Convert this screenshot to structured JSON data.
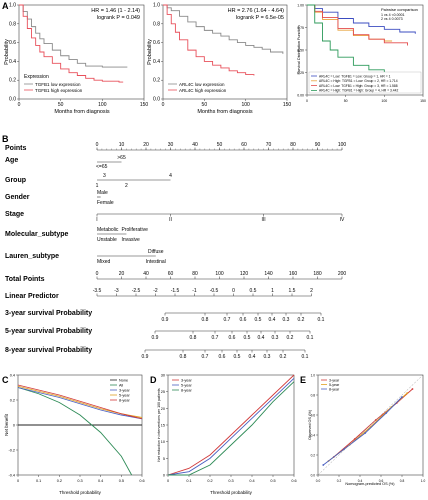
{
  "panels": {
    "A": "A",
    "B": "B",
    "C": "C",
    "D": "D",
    "E": "E"
  },
  "km1": {
    "stat_line1": "HR = 1.46 (1 - 2.14)",
    "stat_line2": "logrank P = 0.049",
    "ylabel": "Probability",
    "xlabel": "Months from diagnosis",
    "legend_title": "Expression",
    "legend": [
      "TGFB1 low expression",
      "TGFB1 high expression"
    ]
  },
  "km2": {
    "stat_line1": "HR = 2.76 (1.64 - 4.64)",
    "stat_line2": "logrank P = 6.5e-05",
    "ylabel": "Probability",
    "xlabel": "Months from diagnosis",
    "legend": [
      "ARL4C low expression",
      "ARL4C high expression"
    ]
  },
  "km3": {
    "ylabel": "Survival Distribution Function",
    "title": "Pairwise comparison",
    "pairs": [
      "1 vs 4 <0.0001",
      "2 vs 4 0.0073"
    ],
    "legend": [
      "ARL4C = Low: TGFB1 = Low: Group = 1, HR = 1",
      "ARL4C = High: TGFB1 = Low: Group = 2, HR = 1.714",
      "ARL4C = Low: TGFB1 = High: Group = 3, HR = 1.588",
      "ARL4C = High: TGFB1 = High: Group = 4, HR = 3.442"
    ]
  },
  "colors": {
    "km_low": "#8a8a8a",
    "km_high": "#e8505b",
    "km3_g1": "#3b4cc0",
    "km3_g2": "#e8a33d",
    "km3_g3": "#e34b4b",
    "km3_g4": "#2c9a5a",
    "dca_none": "#222222",
    "dca_all": "#2e8b57",
    "dca_3yr": "#4a5fc1",
    "dca_5yr": "#e0a020",
    "dca_8yr": "#d23a3a"
  },
  "nomogram": {
    "rows": [
      {
        "label": "Points"
      },
      {
        "label": "Age",
        "values": [
          ">65",
          "<=65"
        ]
      },
      {
        "label": "Group",
        "values": [
          "3",
          "4",
          "1",
          "2"
        ]
      },
      {
        "label": "Gender",
        "values": [
          "Male",
          "Female"
        ]
      },
      {
        "label": "Stage",
        "values": [
          "I",
          "II",
          "III",
          "IV"
        ]
      },
      {
        "label": "Molecular_subtype",
        "values": [
          "Metabolic",
          "Proliferative",
          "Unstable",
          "Invasive"
        ]
      },
      {
        "label": "Lauren_subtype",
        "values": [
          "Diffuse",
          "Mixed",
          "Intestinal"
        ]
      },
      {
        "label": "Total Points"
      },
      {
        "label": "Linear Predictor"
      },
      {
        "label": "3-year survival Probability"
      },
      {
        "label": "5-year survival Probability"
      },
      {
        "label": "8-year survival Probability"
      }
    ],
    "points_ticks": [
      "0",
      "10",
      "20",
      "30",
      "40",
      "50",
      "60",
      "70",
      "80",
      "90",
      "100"
    ],
    "total_ticks": [
      "0",
      "20",
      "40",
      "60",
      "80",
      "100",
      "120",
      "140",
      "160",
      "180",
      "200"
    ],
    "lp_ticks": [
      "-3.5",
      "-3",
      "-2.5",
      "-2",
      "-1.5",
      "-1",
      "-0.5",
      "0",
      "0.5",
      "1",
      "1.5",
      "2"
    ],
    "p3_ticks": [
      "0.9",
      "0.8",
      "0.7",
      "0.6",
      "0.5",
      "0.4",
      "0.3",
      "0.2",
      "0.1"
    ],
    "p5_ticks": [
      "0.9",
      "0.8",
      "0.7",
      "0.6",
      "0.5",
      "0.4",
      "0.3",
      "0.2",
      "0.1"
    ],
    "p8_ticks": [
      "0.9",
      "0.8",
      "0.7",
      "0.6",
      "0.5",
      "0.4",
      "0.3",
      "0.2",
      "0.1"
    ]
  },
  "dca": {
    "ylabel": "Net benefit",
    "xlabel": "Threshold probability",
    "legend": [
      "None",
      "All",
      "3-year",
      "5-year",
      "8-year"
    ]
  },
  "cic": {
    "ylabel": "Net reduction in interventions per 100 patients",
    "xlabel": "Threshold probability",
    "legend": [
      "3-year",
      "5-year",
      "8-year"
    ]
  },
  "calib": {
    "ylabel": "Observed OS (%)",
    "xlabel": "Nomogram-predicted OS (%)",
    "legend": [
      "3-year",
      "5-year",
      "8-year"
    ]
  },
  "chart_data": [
    {
      "type": "line",
      "title": "",
      "xlabel": "Months from diagnosis",
      "ylabel": "Probability",
      "xlim": [
        0,
        150
      ],
      "ylim": [
        0,
        1
      ],
      "series": [
        {
          "name": "TGFB1 low expression",
          "x": [
            0,
            5,
            10,
            15,
            20,
            25,
            30,
            40,
            50,
            60,
            70,
            80,
            100,
            120,
            130
          ],
          "values": [
            1.0,
            0.93,
            0.85,
            0.77,
            0.7,
            0.64,
            0.59,
            0.52,
            0.46,
            0.42,
            0.38,
            0.35,
            0.34,
            0.34,
            0.34
          ]
        },
        {
          "name": "TGFB1 high expression",
          "x": [
            0,
            5,
            10,
            15,
            20,
            25,
            30,
            40,
            50,
            60,
            70,
            80,
            90,
            100,
            120,
            125
          ],
          "values": [
            1.0,
            0.88,
            0.75,
            0.65,
            0.57,
            0.5,
            0.45,
            0.38,
            0.32,
            0.28,
            0.25,
            0.22,
            0.2,
            0.19,
            0.18,
            0.18
          ]
        }
      ]
    },
    {
      "type": "line",
      "title": "",
      "xlabel": "Months from diagnosis",
      "ylabel": "Probability",
      "xlim": [
        0,
        150
      ],
      "ylim": [
        0,
        1
      ],
      "series": [
        {
          "name": "ARL4C low expression",
          "x": [
            0,
            5,
            10,
            20,
            30,
            40,
            50,
            60,
            70,
            80,
            90,
            100,
            110,
            120,
            130,
            145
          ],
          "values": [
            1.0,
            0.97,
            0.94,
            0.88,
            0.82,
            0.77,
            0.73,
            0.7,
            0.67,
            0.63,
            0.6,
            0.57,
            0.55,
            0.53,
            0.5,
            0.48
          ]
        },
        {
          "name": "ARL4C high expression",
          "x": [
            0,
            5,
            10,
            15,
            20,
            30,
            40,
            50,
            60,
            70,
            80,
            90,
            100,
            110
          ],
          "values": [
            1.0,
            0.9,
            0.8,
            0.71,
            0.63,
            0.52,
            0.45,
            0.4,
            0.36,
            0.33,
            0.3,
            0.28,
            0.26,
            0.25
          ]
        }
      ]
    },
    {
      "type": "line",
      "title": "Pairwise comparison",
      "xlabel": "",
      "ylabel": "Survival Distribution Function",
      "xlim": [
        0,
        150
      ],
      "ylim": [
        0,
        1
      ],
      "series": [
        {
          "name": "ARL4C = Low: TGFB1 = Low: Group = 1, HR = 1",
          "x": [
            0,
            10,
            20,
            40,
            60,
            80,
            100,
            120,
            140
          ],
          "values": [
            1.0,
            0.96,
            0.92,
            0.85,
            0.8,
            0.76,
            0.73,
            0.7,
            0.68
          ]
        },
        {
          "name": "ARL4C = High: TGFB1 = Low: Group = 2, HR = 1.714",
          "x": [
            0,
            10,
            20,
            40,
            60,
            80,
            100,
            110
          ],
          "values": [
            1.0,
            0.92,
            0.84,
            0.72,
            0.66,
            0.62,
            0.6,
            0.6
          ]
        },
        {
          "name": "ARL4C = Low: TGFB1 = High: Group = 3, HR = 1.588",
          "x": [
            0,
            10,
            20,
            40,
            60,
            80,
            100,
            130
          ],
          "values": [
            1.0,
            0.93,
            0.86,
            0.74,
            0.67,
            0.62,
            0.58,
            0.55
          ]
        },
        {
          "name": "ARL4C = High: TGFB1 = High: Group = 4, HR = 3.442",
          "x": [
            0,
            10,
            20,
            30,
            40,
            60,
            80,
            100,
            120
          ],
          "values": [
            1.0,
            0.8,
            0.6,
            0.5,
            0.42,
            0.33,
            0.28,
            0.25,
            0.23
          ]
        }
      ]
    },
    {
      "type": "line",
      "title": "",
      "xlabel": "Threshold probability",
      "ylabel": "Net benefit",
      "xlim": [
        0,
        0.6
      ],
      "ylim": [
        -0.4,
        0.4
      ],
      "series": [
        {
          "name": "None",
          "x": [
            0,
            0.6
          ],
          "values": [
            0,
            0
          ]
        },
        {
          "name": "All",
          "x": [
            0,
            0.1,
            0.2,
            0.3,
            0.4,
            0.5,
            0.55
          ],
          "values": [
            0.3,
            0.25,
            0.18,
            0.08,
            -0.06,
            -0.25,
            -0.4
          ]
        },
        {
          "name": "3-year",
          "x": [
            0,
            0.1,
            0.2,
            0.3,
            0.4,
            0.5,
            0.6
          ],
          "values": [
            0.3,
            0.26,
            0.22,
            0.17,
            0.12,
            0.08,
            0.05
          ]
        },
        {
          "name": "5-year",
          "x": [
            0,
            0.1,
            0.2,
            0.3,
            0.4,
            0.5,
            0.6
          ],
          "values": [
            0.31,
            0.27,
            0.23,
            0.18,
            0.13,
            0.09,
            0.06
          ]
        },
        {
          "name": "8-year",
          "x": [
            0,
            0.1,
            0.2,
            0.3,
            0.4,
            0.5,
            0.6
          ],
          "values": [
            0.32,
            0.28,
            0.24,
            0.19,
            0.14,
            0.09,
            0.05
          ]
        }
      ]
    },
    {
      "type": "line",
      "title": "",
      "xlabel": "Threshold probability",
      "ylabel": "Net reduction in interventions per 100 patients",
      "xlim": [
        0,
        0.6
      ],
      "ylim": [
        0,
        30
      ],
      "series": [
        {
          "name": "3-year",
          "x": [
            0,
            0.1,
            0.2,
            0.3,
            0.4,
            0.5,
            0.6
          ],
          "values": [
            0,
            2,
            6,
            12,
            18,
            24,
            30
          ]
        },
        {
          "name": "5-year",
          "x": [
            0,
            0.1,
            0.2,
            0.3,
            0.4,
            0.5,
            0.6
          ],
          "values": [
            0,
            1,
            5,
            11,
            17,
            23,
            29
          ]
        },
        {
          "name": "8-year",
          "x": [
            0,
            0.1,
            0.2,
            0.3,
            0.4,
            0.5,
            0.6
          ],
          "values": [
            0,
            0,
            3,
            9,
            15,
            22,
            28
          ]
        }
      ]
    },
    {
      "type": "line",
      "title": "",
      "xlabel": "Nomogram-predicted OS (%)",
      "ylabel": "Observed OS (%)",
      "xlim": [
        0,
        1
      ],
      "ylim": [
        0,
        1
      ],
      "series": [
        {
          "name": "3-year",
          "x": [
            0.15,
            0.35,
            0.55,
            0.75,
            0.9
          ],
          "values": [
            0.18,
            0.36,
            0.55,
            0.72,
            0.86
          ]
        },
        {
          "name": "5-year",
          "x": [
            0.1,
            0.3,
            0.5,
            0.7,
            0.85
          ],
          "values": [
            0.14,
            0.3,
            0.48,
            0.68,
            0.82
          ]
        },
        {
          "name": "8-year",
          "x": [
            0.05,
            0.25,
            0.45,
            0.65,
            0.8
          ],
          "values": [
            0.1,
            0.26,
            0.42,
            0.62,
            0.78
          ]
        }
      ]
    }
  ]
}
